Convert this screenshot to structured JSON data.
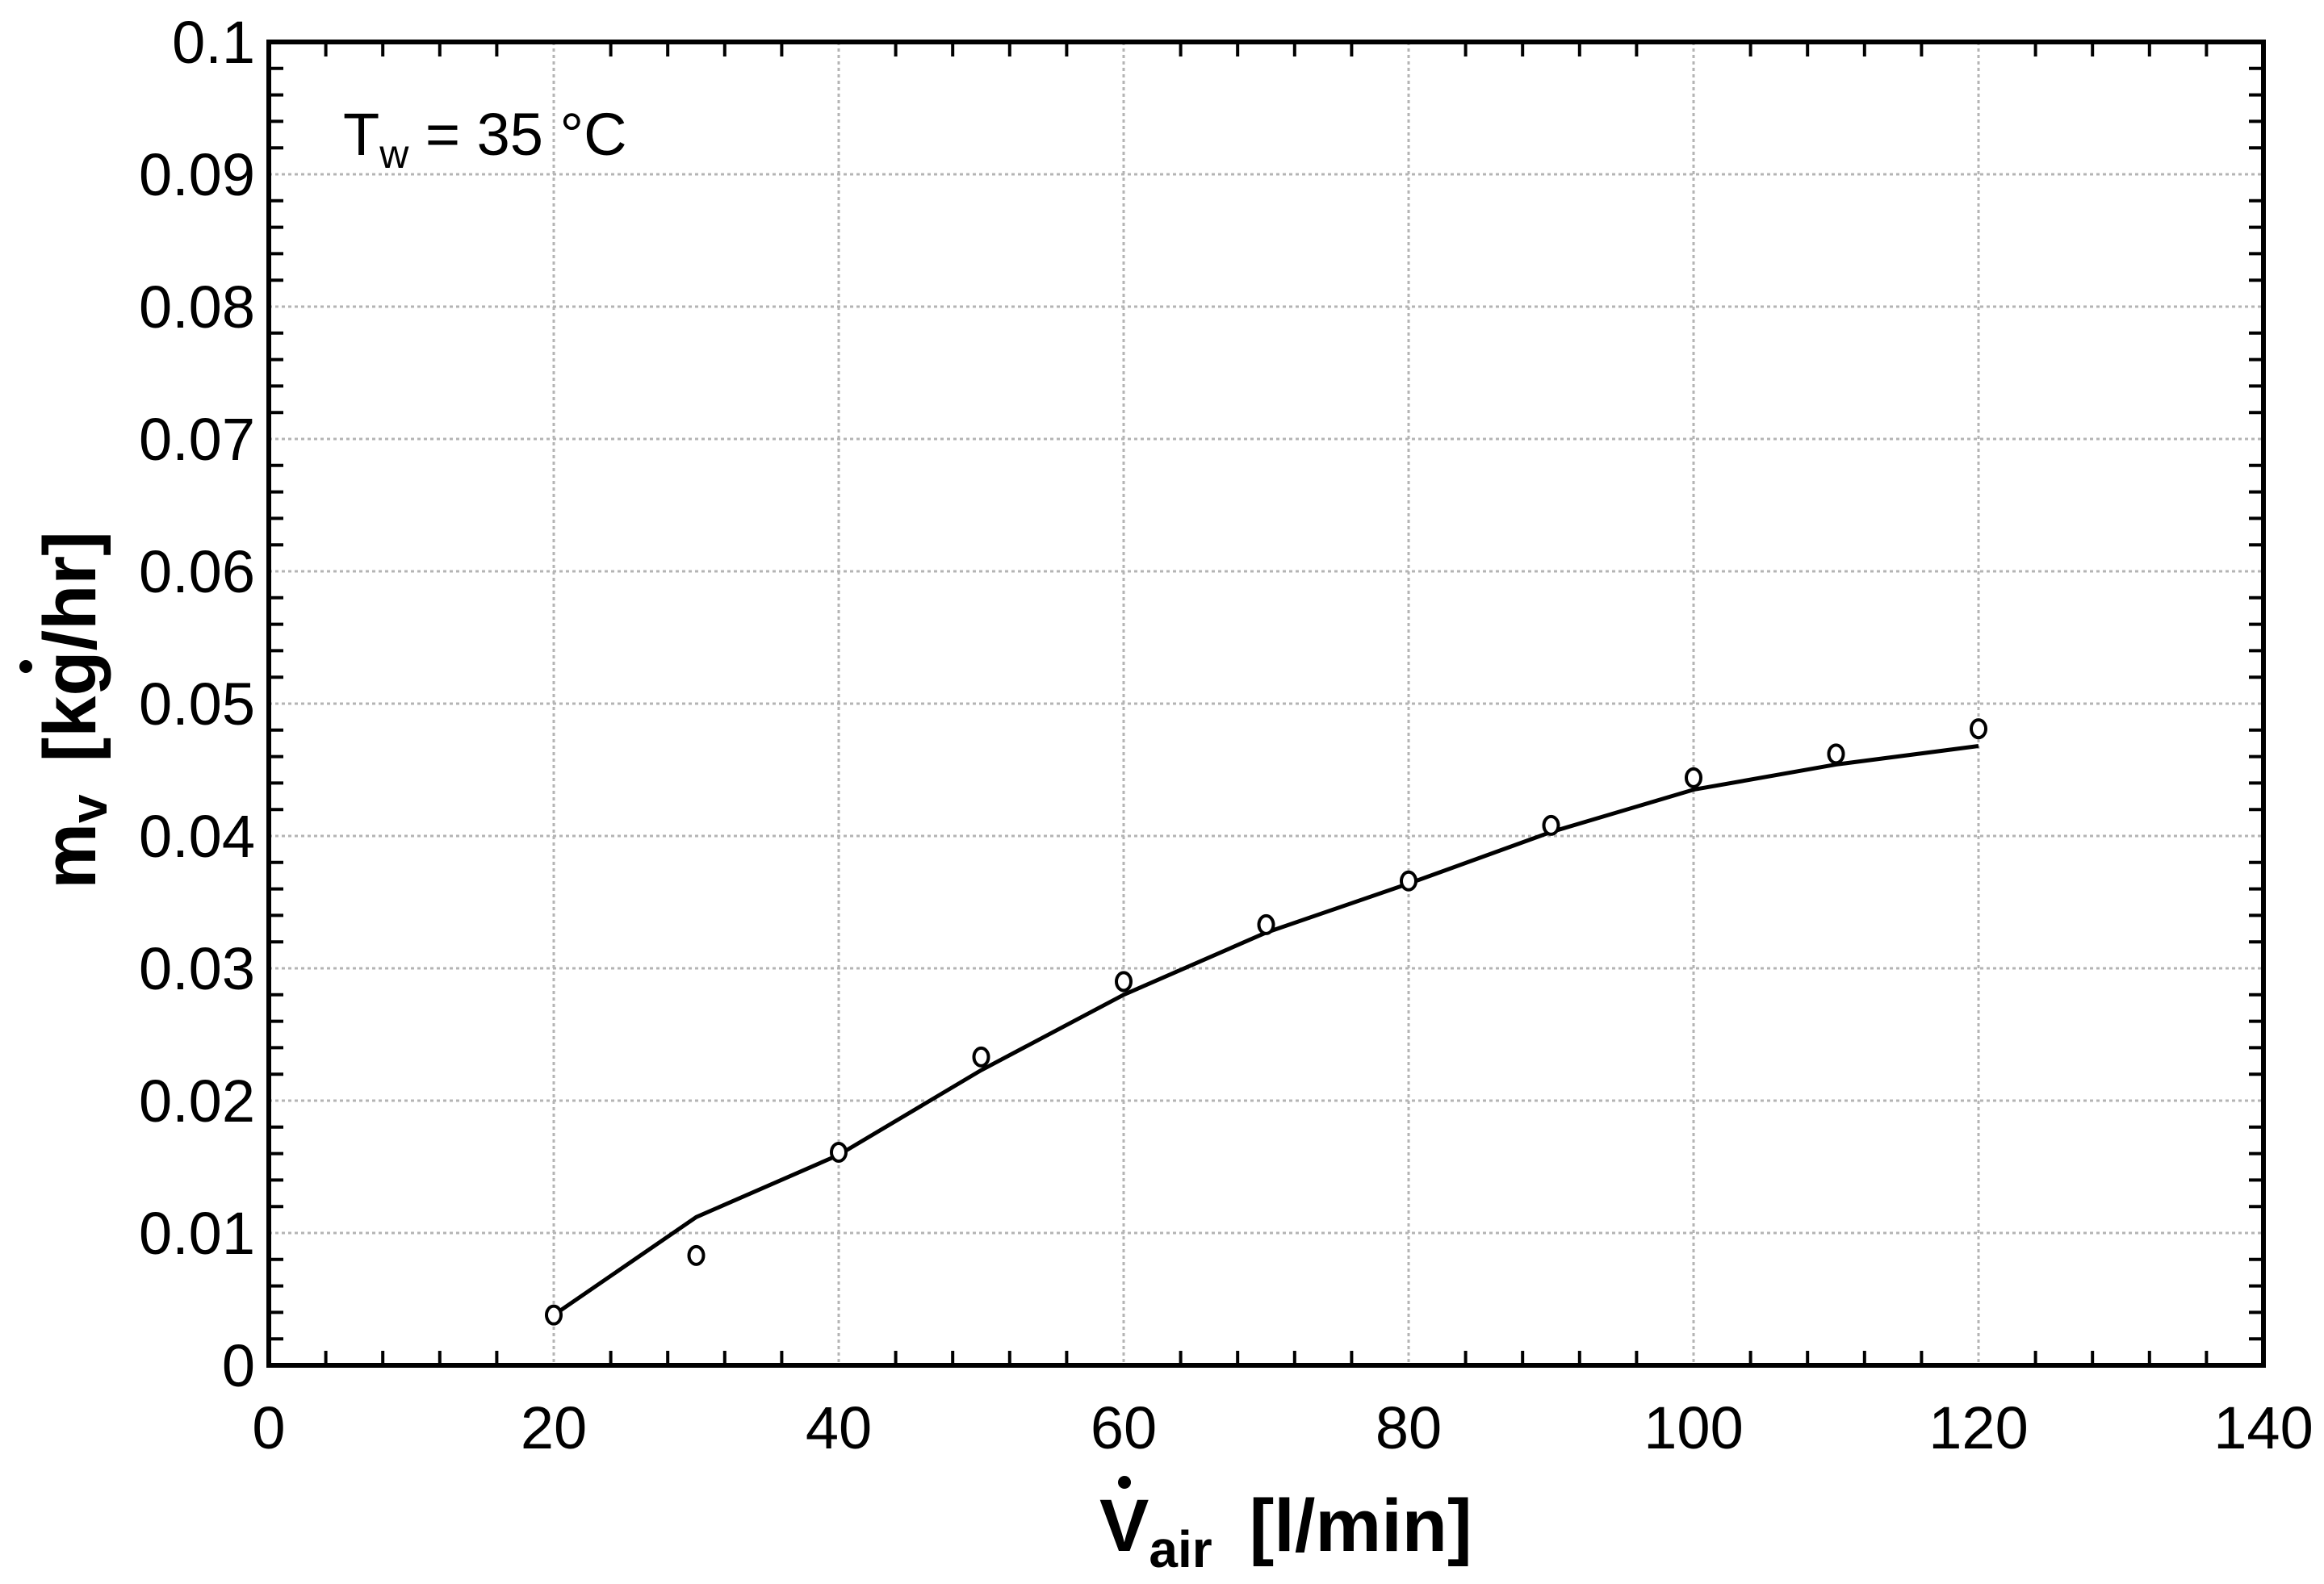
{
  "chart_data": {
    "type": "line",
    "title": "",
    "xlabel": {
      "symbol": "V",
      "subscript": "air",
      "unit": "[l/min]"
    },
    "ylabel": {
      "symbol": "m",
      "subscript": "v",
      "unit": "[kg/hr]"
    },
    "xlim": [
      0,
      140
    ],
    "ylim": [
      0,
      0.1
    ],
    "x_ticks": [
      "0",
      "20",
      "40",
      "60",
      "80",
      "100",
      "120",
      "140"
    ],
    "y_ticks": [
      "0",
      "0.01",
      "0.02",
      "0.03",
      "0.04",
      "0.05",
      "0.06",
      "0.07",
      "0.08",
      "0.09",
      "0.1"
    ],
    "grid": true,
    "annotation": {
      "symbol": "T",
      "subscript": "w",
      "text": " = 35 °C"
    },
    "x": [
      20,
      30,
      40,
      50,
      60,
      70,
      80,
      90,
      100,
      110,
      120
    ],
    "series": [
      {
        "kind": "markers",
        "marker": "open-circle",
        "values": [
          0.0038,
          0.0083,
          0.0161,
          0.0233,
          0.029,
          0.0333,
          0.0366,
          0.0408,
          0.0444,
          0.0462,
          0.0481
        ]
      },
      {
        "kind": "line",
        "values": [
          0.0038,
          0.0112,
          0.0159,
          0.0223,
          0.028,
          0.0327,
          0.0364,
          0.0403,
          0.0435,
          0.0454,
          0.0468
        ]
      }
    ],
    "colors": {
      "axis": "#000000",
      "grid": "#b4b4b4",
      "series": "#000000"
    }
  }
}
